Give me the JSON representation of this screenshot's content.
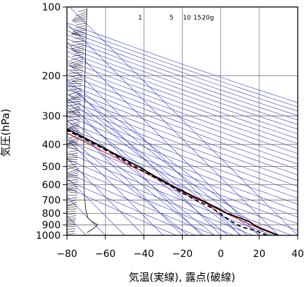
{
  "chart_data": {
    "type": "line",
    "title": "",
    "xlabel": "気温(実線), 露点(破線)",
    "ylabel": "気圧(hPa)",
    "x_axis": {
      "range": [
        -80,
        40
      ],
      "ticks": [
        -80,
        -60,
        -40,
        -20,
        0,
        20,
        40
      ],
      "tick_labels": [
        "−80",
        "−60",
        "−40",
        "−20",
        "0",
        "20",
        "40"
      ],
      "skew_degrees": 45
    },
    "y_axis": {
      "scale": "log",
      "range": [
        1000,
        100
      ],
      "ticks": [
        100,
        200,
        300,
        400,
        500,
        600,
        700,
        800,
        900,
        1000
      ],
      "tick_labels": [
        "100",
        "200",
        "300",
        "400",
        "500",
        "600",
        "700",
        "800",
        "900",
        "1000"
      ]
    },
    "grid": true,
    "mixing_ratio_labels": [
      "1",
      "5",
      "10",
      "15",
      "20g"
    ],
    "colors": {
      "temperature": "#000000",
      "dewpoint": "#000000",
      "reference_curve": "#e00000",
      "background_lines": "#3333cc",
      "grid": "#555555"
    },
    "series": [
      {
        "style": "solid",
        "points": [
          {
            "p": 1000,
            "t": 30
          },
          {
            "p": 950,
            "t": 26
          },
          {
            "p": 925,
            "t": 24
          },
          {
            "p": 900,
            "t": 22.6
          },
          {
            "p": 875,
            "t": 22
          },
          {
            "p": 850,
            "t": 20
          },
          {
            "p": 800,
            "t": 14.6
          },
          {
            "p": 750,
            "t": 11.6
          },
          {
            "p": 700,
            "t": 8
          },
          {
            "p": 650,
            "t": 4
          },
          {
            "p": 600,
            "t": 0
          },
          {
            "p": 550,
            "t": -3.6
          },
          {
            "p": 500,
            "t": -7
          },
          {
            "p": 450,
            "t": -12
          },
          {
            "p": 400,
            "t": -16.8
          },
          {
            "p": 350,
            "t": -23.6
          },
          {
            "p": 300,
            "t": -32
          },
          {
            "p": 250,
            "t": -40
          },
          {
            "p": 200,
            "t": -52
          },
          {
            "p": 175,
            "t": -57
          },
          {
            "p": 150,
            "t": -64
          },
          {
            "p": 125,
            "t": -68
          },
          {
            "p": 110,
            "t": -70
          },
          {
            "p": 100,
            "t": -70
          }
        ]
      },
      {
        "style": "dashed",
        "points": [
          {
            "p": 1000,
            "t": 24
          },
          {
            "p": 950,
            "t": 20
          },
          {
            "p": 925,
            "t": 16
          },
          {
            "p": 900,
            "t": 14
          },
          {
            "p": 850,
            "t": 12
          },
          {
            "p": 800,
            "t": 11
          },
          {
            "p": 750,
            "t": 9
          },
          {
            "p": 700,
            "t": 5
          },
          {
            "p": 650,
            "t": 2
          },
          {
            "p": 600,
            "t": -1
          },
          {
            "p": 550,
            "t": -5
          },
          {
            "p": 500,
            "t": -9
          },
          {
            "p": 450,
            "t": -13
          },
          {
            "p": 400,
            "t": -18
          },
          {
            "p": 350,
            "t": -25
          },
          {
            "p": 300,
            "t": -33
          },
          {
            "p": 250,
            "t": -45
          },
          {
            "p": 233,
            "t": -50
          },
          {
            "p": 233,
            "t": -78
          }
        ]
      }
    ],
    "reference_curve": [
      {
        "p": 1000,
        "t": 29
      },
      {
        "p": 900,
        "t": 21
      },
      {
        "p": 800,
        "t": 14
      },
      {
        "p": 700,
        "t": 7
      },
      {
        "p": 600,
        "t": -1
      },
      {
        "p": 500,
        "t": -10
      },
      {
        "p": 400,
        "t": -21
      },
      {
        "p": 300,
        "t": -36
      },
      {
        "p": 250,
        "t": -46
      },
      {
        "p": 200,
        "t": -58
      },
      {
        "p": 150,
        "t": -73
      },
      {
        "p": 130,
        "t": -80
      }
    ]
  }
}
